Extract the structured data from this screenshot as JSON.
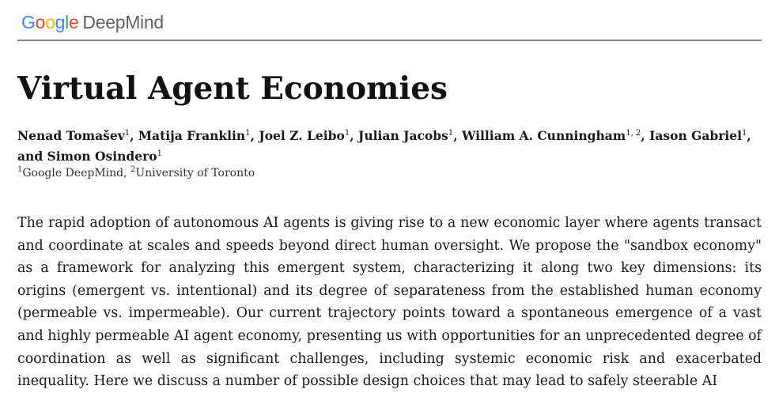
{
  "header": {
    "logo_google": [
      "G",
      "o",
      "o",
      "g",
      "l",
      "e"
    ],
    "logo_google_colors": [
      "#4285F4",
      "#EA4335",
      "#FBBC05",
      "#4285F4",
      "#34A853",
      "#EA4335"
    ],
    "logo_deepmind": "DeepMind"
  },
  "paper": {
    "title": "Virtual Agent Economies",
    "authors": [
      {
        "name": "Nenad Tomašev",
        "sup": "1"
      },
      {
        "name": "Matija Franklin",
        "sup": "1"
      },
      {
        "name": "Joel Z. Leibo",
        "sup": "1"
      },
      {
        "name": "Julian Jacobs",
        "sup": "1"
      },
      {
        "name": "William A. Cunningham",
        "sup": "1, 2"
      },
      {
        "name": "Iason Gabriel",
        "sup": "1"
      },
      {
        "name": "Simon Osindero",
        "sup": "1"
      }
    ],
    "author_separator": ", ",
    "author_final_joiner": "and ",
    "affiliations": [
      {
        "sup": "1",
        "name": "Google DeepMind"
      },
      {
        "sup": "2",
        "name": "University of Toronto"
      }
    ],
    "affiliation_separator": ", ",
    "abstract": "The rapid adoption of autonomous AI agents is giving rise to a new economic layer where agents transact and coordinate at scales and speeds beyond direct human oversight. We propose the \"sandbox economy\" as a framework for analyzing this emergent system, characterizing it along two key dimensions: its origins (emergent vs. intentional) and its degree of separateness from the established human economy (permeable vs. impermeable). Our current trajectory points toward a spontaneous emergence of a vast and highly permeable AI agent economy, presenting us with opportunities for an unprecedented degree of coordination as well as significant challenges, including systemic economic risk and exacerbated inequality. Here we discuss a number of possible design choices that may lead to safely steerable AI"
  }
}
